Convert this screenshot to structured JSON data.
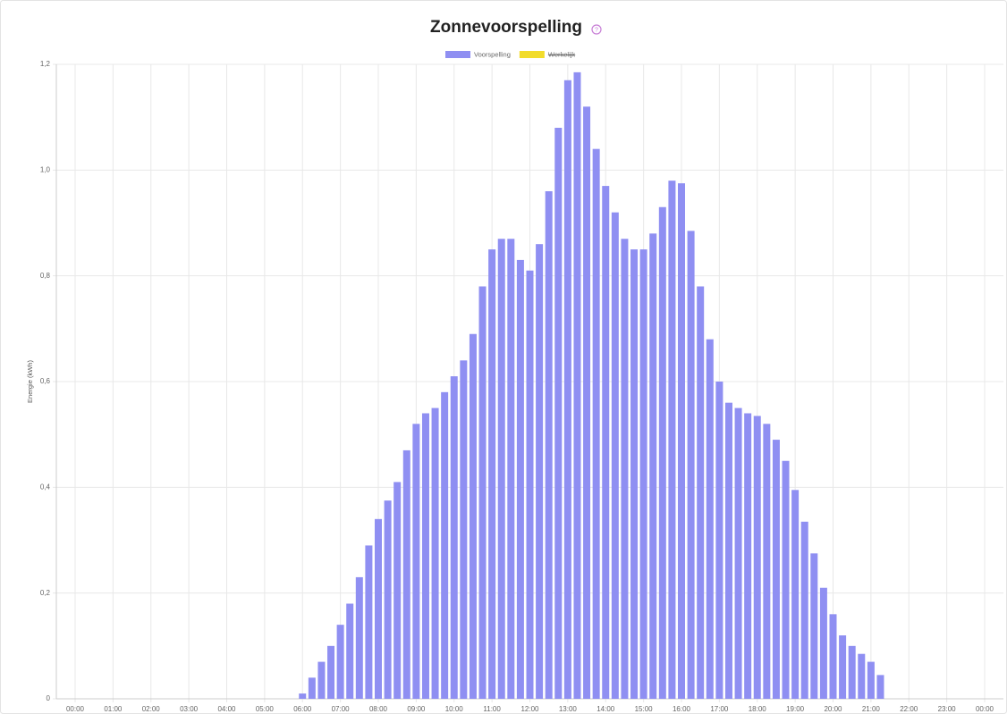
{
  "chart_data": {
    "type": "bar",
    "title": "Zonnevoorspelling",
    "y_label": "Energie (kWh)",
    "categories": [
      "00:00",
      null,
      null,
      null,
      "01:00",
      null,
      null,
      null,
      "02:00",
      null,
      null,
      null,
      "03:00",
      null,
      null,
      null,
      "04:00",
      null,
      null,
      null,
      "05:00",
      null,
      null,
      null,
      "06:00",
      null,
      null,
      null,
      "07:00",
      null,
      null,
      null,
      "08:00",
      null,
      null,
      null,
      "09:00",
      null,
      null,
      null,
      "10:00",
      null,
      null,
      null,
      "11:00",
      null,
      null,
      null,
      "12:00",
      null,
      null,
      null,
      "13:00",
      null,
      null,
      null,
      "14:00",
      null,
      null,
      null,
      "15:00",
      null,
      null,
      null,
      "16:00",
      null,
      null,
      null,
      "17:00",
      null,
      null,
      null,
      "18:00",
      null,
      null,
      null,
      "19:00",
      null,
      null,
      null,
      "20:00",
      null,
      null,
      null,
      "21:00",
      null,
      null,
      null,
      "22:00",
      null,
      null,
      null,
      "23:00",
      null,
      null,
      null,
      "00:00"
    ],
    "series": [
      {
        "name": "Voorspelling",
        "color": "#8f8ff2",
        "values": [
          0,
          0,
          0,
          0,
          0,
          0,
          0,
          0,
          0,
          0,
          0,
          0,
          0,
          0,
          0,
          0,
          0,
          0,
          0,
          0,
          0,
          0,
          0,
          0,
          0.01,
          0.04,
          0.07,
          0.1,
          0.14,
          0.18,
          0.23,
          0.29,
          0.34,
          0.375,
          0.41,
          0.47,
          0.52,
          0.54,
          0.55,
          0.58,
          0.61,
          0.64,
          0.69,
          0.78,
          0.85,
          0.87,
          0.87,
          0.83,
          0.81,
          0.86,
          0.96,
          1.08,
          1.17,
          1.185,
          1.12,
          1.04,
          0.97,
          0.92,
          0.87,
          0.85,
          0.85,
          0.88,
          0.93,
          0.98,
          0.975,
          0.885,
          0.78,
          0.68,
          0.6,
          0.56,
          0.55,
          0.54,
          0.535,
          0.52,
          0.49,
          0.45,
          0.395,
          0.335,
          0.275,
          0.21,
          0.16,
          0.12,
          0.1,
          0.085,
          0.07,
          0.045,
          0,
          0,
          0,
          0,
          0,
          0,
          0,
          0,
          0,
          0,
          0
        ]
      },
      {
        "name": "Werkelijk",
        "color": "#f2dc2a",
        "hidden": true,
        "values": [
          null,
          null,
          null,
          null,
          null,
          null,
          null,
          null,
          null,
          null,
          null,
          null,
          null,
          null,
          null,
          null,
          null,
          null,
          null,
          null,
          null,
          null,
          null,
          null,
          null,
          null,
          null,
          null,
          null,
          null,
          null,
          null,
          null,
          null,
          null,
          null,
          null,
          null,
          null,
          null,
          null,
          null,
          null,
          null,
          null,
          null,
          null,
          null,
          null,
          null,
          null,
          null,
          null,
          null,
          null,
          null,
          null,
          null,
          null,
          null,
          null,
          null,
          null,
          null,
          null,
          null,
          null,
          null,
          null,
          null,
          null,
          null,
          null,
          null,
          null,
          null,
          null,
          null,
          null,
          null,
          null,
          null,
          null,
          null,
          null,
          null,
          null,
          null,
          null,
          null,
          null,
          null,
          null,
          null,
          null,
          null,
          null
        ]
      }
    ],
    "ylim": [
      0,
      1.2
    ],
    "yticks": [
      0,
      {
        "value": 0.2,
        "label": "0,2"
      },
      {
        "value": 0.4,
        "label": "0,4"
      },
      {
        "value": 0.6,
        "label": "0,6"
      },
      {
        "value": 0.8,
        "label": "0,8"
      },
      {
        "value": 1.0,
        "label": "1,0"
      },
      {
        "value": 1.2,
        "label": "1,2"
      }
    ],
    "grid": true
  }
}
